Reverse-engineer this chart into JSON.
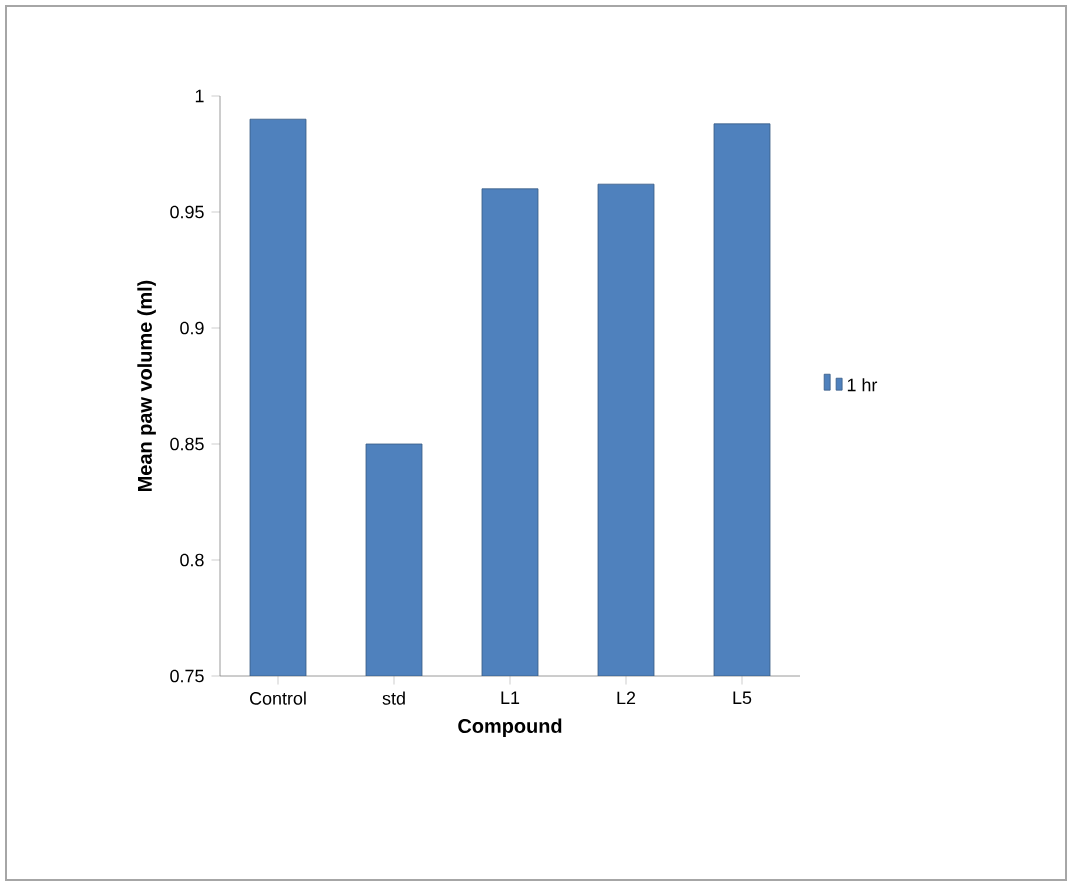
{
  "chart_data": {
    "type": "bar",
    "xlabel": "Compound",
    "ylabel": "Mean paw volume (ml)",
    "categories": [
      "Control",
      "std",
      "L1",
      "L2",
      "L5"
    ],
    "series": [
      {
        "name": "1 hr",
        "color": "#4f81bd",
        "values": [
          0.99,
          0.85,
          0.96,
          0.962,
          0.988
        ]
      }
    ],
    "ylim": [
      0.75,
      1
    ],
    "yticks": [
      0.75,
      0.8,
      0.85,
      0.9,
      0.95,
      1
    ],
    "legend": "right",
    "grid": false
  }
}
